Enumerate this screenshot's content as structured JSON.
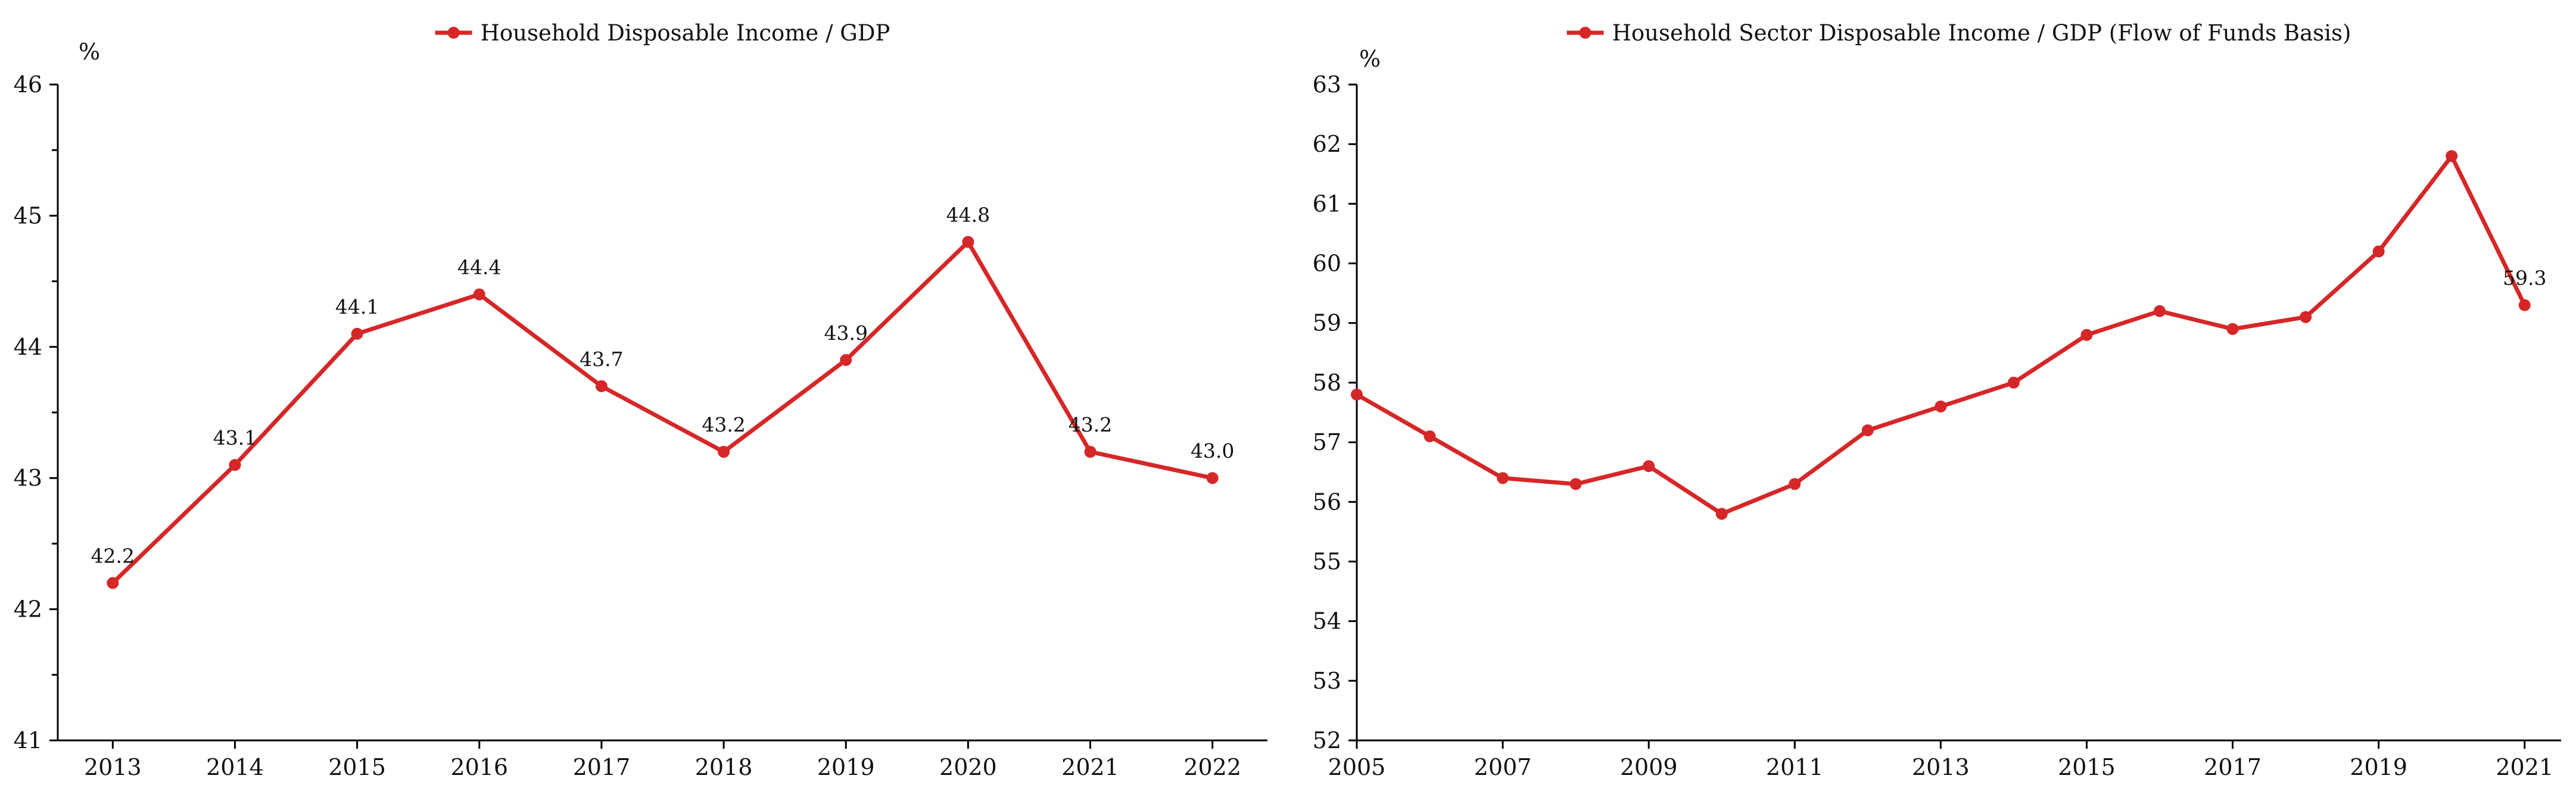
{
  "chart_data": [
    {
      "type": "line",
      "title": "",
      "xlabel": "",
      "ylabel": "%",
      "ylim": [
        41,
        46
      ],
      "yticks": [
        41,
        42,
        43,
        44,
        45,
        46
      ],
      "yminor_step": 0.5,
      "x": [
        2013,
        2014,
        2015,
        2016,
        2017,
        2018,
        2019,
        2020,
        2021,
        2022
      ],
      "xticks": [
        2013,
        2014,
        2015,
        2016,
        2017,
        2018,
        2019,
        2020,
        2021,
        2022
      ],
      "series": [
        {
          "name": "Household Disposable Income / GDP",
          "color": "#d62728",
          "values": [
            42.2,
            43.1,
            44.1,
            44.4,
            43.7,
            43.2,
            43.9,
            44.8,
            43.2,
            43.0
          ],
          "data_labels": [
            "42.2",
            "43.1",
            "44.1",
            "44.4",
            "43.7",
            "43.2",
            "43.9",
            "44.8",
            "43.2",
            "43.0"
          ]
        }
      ],
      "legend_position": "top-center",
      "grid": false
    },
    {
      "type": "line",
      "title": "",
      "xlabel": "",
      "ylabel": "%",
      "ylim": [
        52,
        63
      ],
      "yticks": [
        52,
        53,
        54,
        55,
        56,
        57,
        58,
        59,
        60,
        61,
        62,
        63
      ],
      "xlim": [
        2005,
        2021.5
      ],
      "x": [
        2005,
        2006,
        2007,
        2008,
        2009,
        2010,
        2011,
        2012,
        2013,
        2014,
        2015,
        2016,
        2017,
        2018,
        2019,
        2020,
        2021
      ],
      "xticks": [
        2005,
        2007,
        2009,
        2011,
        2013,
        2015,
        2017,
        2019,
        2021
      ],
      "series": [
        {
          "name": "Household Sector Disposable Income / GDP (Flow of Funds Basis)",
          "color": "#d62728",
          "values": [
            57.8,
            57.1,
            56.4,
            56.3,
            56.6,
            55.8,
            56.3,
            57.2,
            57.6,
            58.0,
            58.8,
            59.2,
            58.9,
            59.1,
            60.2,
            61.8,
            59.3
          ],
          "data_labels": [
            "",
            "",
            "",
            "",
            "",
            "",
            "",
            "",
            "",
            "",
            "",
            "",
            "",
            "",
            "",
            "",
            "59.3"
          ]
        }
      ],
      "legend_position": "top-center",
      "grid": false
    }
  ]
}
